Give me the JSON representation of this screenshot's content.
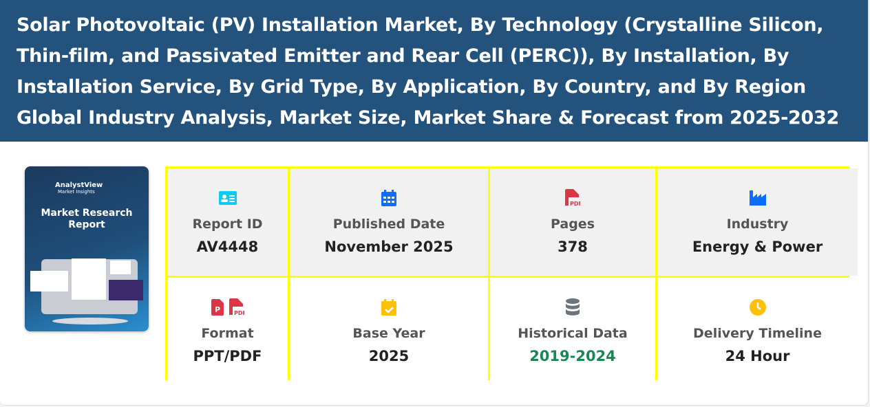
{
  "header": {
    "title": "Solar Photovoltaic (PV) Installation Market, By Technology (Crystalline Silicon, Thin-film, and Passivated Emitter and Rear Cell (PERC)), By Installation, By Installation Service, By Grid Type, By Application, By Country, and By Region Global Industry Analysis, Market Size, Market Share & Forecast from 2025-2032"
  },
  "cover": {
    "brand": "AnalystView",
    "sub": "Market Insights",
    "title": "Market Research Report"
  },
  "details": [
    {
      "label": "Report ID",
      "value": "AV4448",
      "icon": "id-card-icon",
      "color": "#0dcaf0"
    },
    {
      "label": "Published Date",
      "value": "November 2025",
      "icon": "calendar-icon",
      "color": "#0d6efd"
    },
    {
      "label": "Pages",
      "value": "378",
      "icon": "pdf-file-icon",
      "color": "#dc3545"
    },
    {
      "label": "Industry",
      "value": "Energy & Power",
      "icon": "industry-icon",
      "color": "#0d6efd"
    },
    {
      "label": "Format",
      "value": "PPT/PDF",
      "icon": "ppt-pdf-icon",
      "color": "#dc3545"
    },
    {
      "label": "Base Year",
      "value": "2025",
      "icon": "calendar-check-icon",
      "color": "#ffc107"
    },
    {
      "label": "Historical Data",
      "value": "2019-2024",
      "icon": "database-icon",
      "color": "#6c757d"
    },
    {
      "label": "Delivery Timeline",
      "value": "24 Hour",
      "icon": "clock-icon",
      "color": "#ffc107"
    }
  ]
}
